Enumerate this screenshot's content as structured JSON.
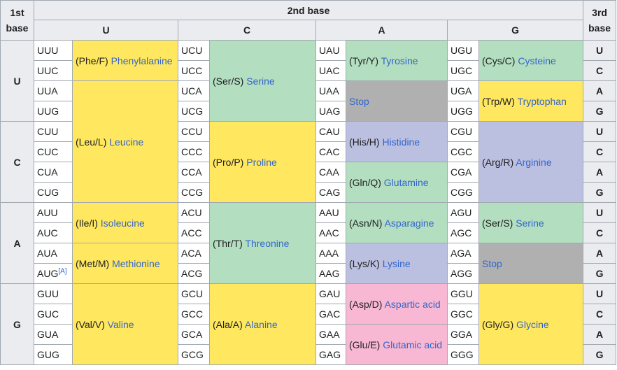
{
  "header": {
    "first_base_line1": "1st",
    "first_base_line2": "base",
    "second_base": "2nd base",
    "third_base_line1": "3rd",
    "third_base_line2": "base",
    "bases": [
      "U",
      "C",
      "A",
      "G"
    ]
  },
  "rows": {
    "U": {
      "label": "U",
      "codons": {
        "U": [
          "UUU",
          "UUC",
          "UUA",
          "UUG"
        ],
        "C": [
          "UCU",
          "UCC",
          "UCA",
          "UCG"
        ],
        "A": [
          "UAU",
          "UAC",
          "UAA",
          "UAG"
        ],
        "G": [
          "UGU",
          "UGC",
          "UGA",
          "UGG"
        ]
      }
    },
    "C": {
      "label": "C",
      "codons": {
        "U": [
          "CUU",
          "CUC",
          "CUA",
          "CUG"
        ],
        "C": [
          "CCU",
          "CCC",
          "CCA",
          "CCG"
        ],
        "A": [
          "CAU",
          "CAC",
          "CAA",
          "CAG"
        ],
        "G": [
          "CGU",
          "CGC",
          "CGA",
          "CGG"
        ]
      }
    },
    "A": {
      "label": "A",
      "codons": {
        "U": [
          "AUU",
          "AUC",
          "AUA",
          "AUG"
        ],
        "C": [
          "ACU",
          "ACC",
          "ACA",
          "ACG"
        ],
        "A": [
          "AAU",
          "AAC",
          "AAA",
          "AAG"
        ],
        "G": [
          "AGU",
          "AGC",
          "AGA",
          "AGG"
        ]
      }
    },
    "G": {
      "label": "G",
      "codons": {
        "U": [
          "GUU",
          "GUC",
          "GUA",
          "GUG"
        ],
        "C": [
          "GCU",
          "GCC",
          "GCA",
          "GCG"
        ],
        "A": [
          "GAU",
          "GAC",
          "GAA",
          "GAG"
        ],
        "G": [
          "GGU",
          "GGC",
          "GGA",
          "GGG"
        ]
      }
    }
  },
  "third_bases": [
    "U",
    "C",
    "A",
    "G"
  ],
  "footnote_mark": "[A]",
  "amino_acids": {
    "phe": {
      "abbr": "(Phe/F)",
      "name": "Phenylalanine"
    },
    "leu": {
      "abbr": "(Leu/L)",
      "name": "Leucine"
    },
    "ile": {
      "abbr": "(Ile/I)",
      "name": "Isoleucine"
    },
    "met": {
      "abbr": "(Met/M)",
      "name": "Methionine"
    },
    "val": {
      "abbr": "(Val/V)",
      "name": "Valine"
    },
    "ser": {
      "abbr": "(Ser/S)",
      "name": "Serine"
    },
    "pro": {
      "abbr": "(Pro/P)",
      "name": "Proline"
    },
    "thr": {
      "abbr": "(Thr/T)",
      "name": "Threonine"
    },
    "ala": {
      "abbr": "(Ala/A)",
      "name": "Alanine"
    },
    "tyr": {
      "abbr": "(Tyr/Y)",
      "name": "Tyrosine"
    },
    "stop": {
      "name": "Stop"
    },
    "his": {
      "abbr": "(His/H)",
      "name": "Histidine"
    },
    "gln": {
      "abbr": "(Gln/Q)",
      "name": "Glutamine"
    },
    "asn": {
      "abbr": "(Asn/N)",
      "name": "Asparagine"
    },
    "lys": {
      "abbr": "(Lys/K)",
      "name": "Lysine"
    },
    "asp": {
      "abbr": "(Asp/D)",
      "name": "Aspartic acid"
    },
    "glu": {
      "abbr": "(Glu/E)",
      "name": "Glutamic acid"
    },
    "cys": {
      "abbr": "(Cys/C)",
      "name": "Cysteine"
    },
    "trp": {
      "abbr": "(Trp/W)",
      "name": "Tryptophan"
    },
    "arg": {
      "abbr": "(Arg/R)",
      "name": "Arginine"
    },
    "ser2": {
      "abbr": "(Ser/S)",
      "name": "Serine"
    },
    "stop2": {
      "name": "Stop"
    },
    "gly": {
      "abbr": "(Gly/G)",
      "name": "Glycine"
    }
  },
  "colors": {
    "nonpolar": "#ffe75f",
    "polar": "#b3dec0",
    "stop": "#b0b0b0",
    "basic": "#bbbfe0",
    "acidic": "#f8b7d3",
    "header_bg": "#eaecf0",
    "link": "#3366cc"
  }
}
